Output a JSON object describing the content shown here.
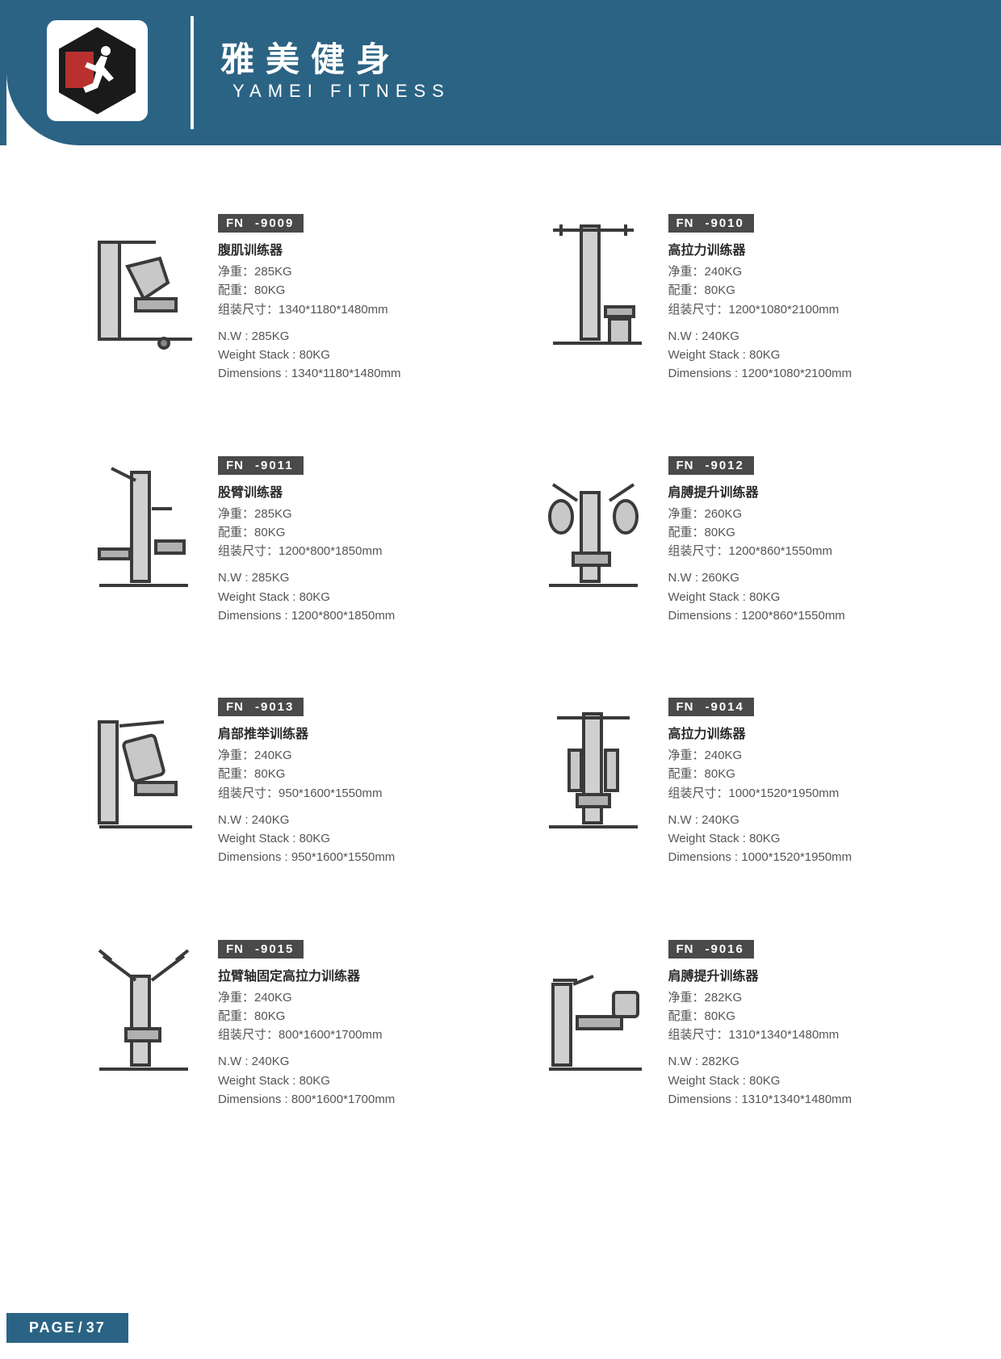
{
  "header": {
    "title_cn": "雅美健身",
    "title_en": "YAMEI  FITNESS",
    "header_bg": "#2b6384",
    "logo_hex_color": "#1a1a1a",
    "logo_accent": "#b8312f"
  },
  "labels": {
    "net_weight_cn": "净重",
    "weight_stack_cn": "配重",
    "dimensions_cn": "组装尺寸",
    "net_weight_en": "N.W",
    "weight_stack_en": "Weight Stack",
    "dimensions_en": "Dimensions",
    "model_prefix": "FN"
  },
  "products": [
    {
      "model": "-9009",
      "name_cn": "腹肌训练器",
      "nw": "285KG",
      "ws": "80KG",
      "dim": "1340*1180*1480mm"
    },
    {
      "model": "-9010",
      "name_cn": "高拉力训练器",
      "nw": "240KG",
      "ws": "80KG",
      "dim": "1200*1080*2100mm"
    },
    {
      "model": "-9011",
      "name_cn": "股臂训练器",
      "nw": "285KG",
      "ws": "80KG",
      "dim": "1200*800*1850mm"
    },
    {
      "model": "-9012",
      "name_cn": "肩膊提升训练器",
      "nw": "260KG",
      "ws": "80KG",
      "dim": "1200*860*1550mm"
    },
    {
      "model": "-9013",
      "name_cn": "肩部推举训练器",
      "nw": "240KG",
      "ws": "80KG",
      "dim": "950*1600*1550mm"
    },
    {
      "model": "-9014",
      "name_cn": "高拉力训练器",
      "nw": "240KG",
      "ws": "80KG",
      "dim": "1000*1520*1950mm"
    },
    {
      "model": "-9015",
      "name_cn": "拉臂轴固定高拉力训练器",
      "nw": "240KG",
      "ws": "80KG",
      "dim": "800*1600*1700mm"
    },
    {
      "model": "-9016",
      "name_cn": "肩膊提升训练器",
      "nw": "282KG",
      "ws": "80KG",
      "dim": "1310*1340*1480mm"
    }
  ],
  "footer": {
    "page_label": "PAGE",
    "page_num": "37"
  },
  "style": {
    "text_color": "#555",
    "heading_color": "#2a2a2a",
    "badge_bg": "#4a4a4a",
    "machine_stroke": "#3a3a3a",
    "machine_fill": "#e8e8e8"
  }
}
